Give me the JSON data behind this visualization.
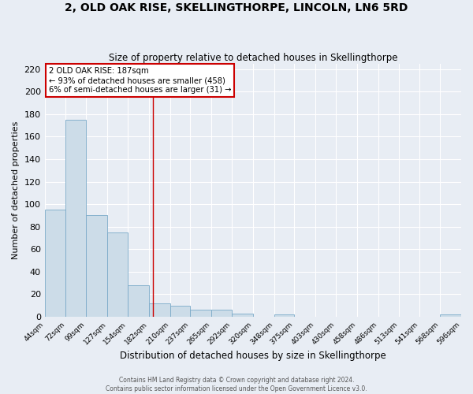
{
  "title": "2, OLD OAK RISE, SKELLINGTHORPE, LINCOLN, LN6 5RD",
  "subtitle": "Size of property relative to detached houses in Skellingthorpe",
  "xlabel": "Distribution of detached houses by size in Skellingthorpe",
  "ylabel": "Number of detached properties",
  "bar_color": "#ccdce8",
  "bar_edge_color": "#7aaac8",
  "background_color": "#e8edf4",
  "grid_color": "#ffffff",
  "vline_x": 187,
  "vline_color": "#cc0000",
  "annotation_title": "2 OLD OAK RISE: 187sqm",
  "annotation_line1": "← 93% of detached houses are smaller (458)",
  "annotation_line2": "6% of semi-detached houses are larger (31) →",
  "annotation_box_color": "#ffffff",
  "annotation_box_edge": "#cc0000",
  "bin_edges": [
    44,
    72,
    99,
    127,
    154,
    182,
    210,
    237,
    265,
    292,
    320,
    348,
    375,
    403,
    430,
    458,
    486,
    513,
    541,
    568,
    596
  ],
  "bin_labels": [
    "44sqm",
    "72sqm",
    "99sqm",
    "127sqm",
    "154sqm",
    "182sqm",
    "210sqm",
    "237sqm",
    "265sqm",
    "292sqm",
    "320sqm",
    "348sqm",
    "375sqm",
    "403sqm",
    "430sqm",
    "458sqm",
    "486sqm",
    "513sqm",
    "541sqm",
    "568sqm",
    "596sqm"
  ],
  "bar_heights": [
    95,
    175,
    90,
    75,
    28,
    12,
    10,
    6,
    6,
    3,
    0,
    2,
    0,
    0,
    0,
    0,
    0,
    0,
    0,
    2
  ],
  "ylim": [
    0,
    225
  ],
  "yticks": [
    0,
    20,
    40,
    60,
    80,
    100,
    120,
    140,
    160,
    180,
    200,
    220
  ],
  "footer1": "Contains HM Land Registry data © Crown copyright and database right 2024.",
  "footer2": "Contains public sector information licensed under the Open Government Licence v3.0."
}
